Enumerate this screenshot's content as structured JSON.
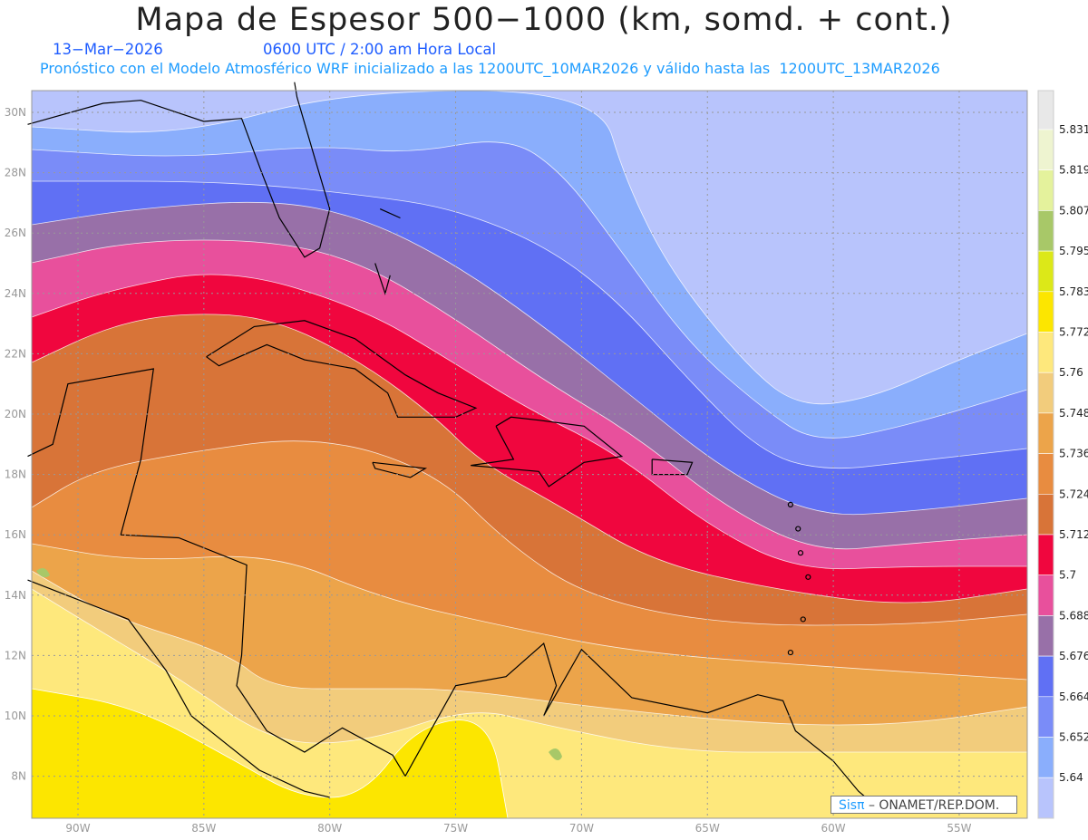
{
  "header": {
    "title": "Mapa de Espesor 500−1000 (km, somd. + cont.)",
    "date": "13−Mar−2026",
    "time": "0600 UTC / 2:00 am Hora Local",
    "description": "Pronóstico con el Modelo Atmosférico WRF inicializado a las 1200UTC_10MAR2026 y válido hasta las  1200UTC_13MAR2026"
  },
  "axes": {
    "lon_labels": [
      "90W",
      "85W",
      "80W",
      "75W",
      "70W",
      "65W",
      "60W",
      "55W"
    ],
    "lon_values": [
      -90,
      -85,
      -80,
      -75,
      -70,
      -65,
      -60,
      -55
    ],
    "lat_labels": [
      "30N",
      "28N",
      "26N",
      "24N",
      "22N",
      "20N",
      "18N",
      "16N",
      "14N",
      "12N",
      "10N",
      "8N"
    ],
    "lat_values": [
      30,
      28,
      26,
      24,
      22,
      20,
      18,
      16,
      14,
      12,
      10,
      8
    ]
  },
  "credit": {
    "brand": "Sisπ",
    "text": "– ONAMET/REP.DOM."
  },
  "chart_data": {
    "type": "heatmap",
    "title": "Mapa de Espesor 500−1000 (km, somd. + cont.)",
    "units": "km",
    "levels": [
      "5.831",
      "5.819",
      "5.807",
      "5.795",
      "5.783",
      "5.772",
      "5.76",
      "5.748",
      "5.736",
      "5.724",
      "5.712",
      "5.7",
      "5.688",
      "5.676",
      "5.664",
      "5.652",
      "5.64"
    ],
    "colors": [
      "#e8e8e8",
      "#eef4d0",
      "#e4f29c",
      "#a8c868",
      "#dce818",
      "#fce600",
      "#fee87c",
      "#f2cc7c",
      "#eca44a",
      "#e88c40",
      "#d87438",
      "#f0063e",
      "#e8509c",
      "#9870a8",
      "#6070f4",
      "#7a8cf8",
      "#8aaefc",
      "#b8c4fc"
    ],
    "xrange": [
      -92,
      -52.5
    ],
    "yrange": [
      6.7,
      30.7
    ],
    "grid": true,
    "legend": "right"
  }
}
